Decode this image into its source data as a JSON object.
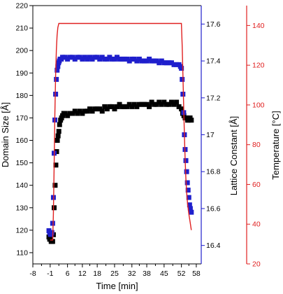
{
  "chart_data": {
    "type": "scatter",
    "x_axis": {
      "label": "Time [min]",
      "range": [
        -8,
        60
      ],
      "ticks": [
        -8,
        -1,
        6,
        12,
        18,
        25,
        32,
        38,
        45,
        52,
        58
      ]
    },
    "y_axes": [
      {
        "id": "domain",
        "label": "Domain Size [Å]",
        "side": "left",
        "color": "#000000",
        "range": [
          105,
          220
        ],
        "ticks": [
          110,
          120,
          130,
          140,
          150,
          160,
          170,
          180,
          190,
          200,
          210,
          220
        ]
      },
      {
        "id": "lattice",
        "label": "Lattice Constant [Å]",
        "side": "right-inner",
        "color": "#1f1fcc",
        "range": [
          16.3,
          17.7
        ],
        "ticks": [
          16.4,
          16.6,
          16.8,
          17.0,
          17.2,
          17.4,
          17.6
        ]
      },
      {
        "id": "temp",
        "label": "Temperature [°C]",
        "side": "right-outer",
        "color": "#e02020",
        "range": [
          20,
          150
        ],
        "ticks": [
          20,
          40,
          60,
          80,
          100,
          120,
          140
        ]
      }
    ],
    "series": [
      {
        "axis": "domain",
        "marker": "square",
        "color": "#000000",
        "x": [
          -1.5,
          -1.2,
          -0.9,
          -0.6,
          -0.3,
          0.0,
          0.3,
          0.6,
          1.0,
          1.3,
          1.6,
          1.9,
          2.2,
          2.5,
          2.8,
          3.2,
          3.6,
          4.0,
          4.5,
          5.0,
          6.0,
          7.0,
          8.0,
          9.0,
          10.0,
          11.0,
          12.0,
          13.0,
          14.0,
          15.0,
          16.0,
          17.0,
          18.0,
          19.0,
          20.0,
          21.0,
          22.0,
          23.0,
          24.0,
          25.0,
          26.0,
          27.0,
          28.0,
          29.0,
          30.0,
          31.0,
          32.0,
          33.0,
          34.0,
          35.0,
          36.0,
          37.0,
          38.0,
          39.0,
          40.0,
          41.0,
          42.0,
          43.0,
          44.0,
          45.0,
          46.0,
          47.0,
          48.0,
          49.0,
          50.0,
          51.0,
          52.0,
          52.5,
          53.0,
          53.5,
          54.0,
          54.5,
          55.0,
          55.5,
          56.0
        ],
        "y": [
          117,
          116,
          116,
          115,
          115,
          115,
          118,
          130,
          140,
          149,
          155,
          160,
          162,
          164,
          167,
          169,
          170,
          171,
          172,
          172,
          171,
          172,
          172,
          173,
          172,
          173,
          172,
          173,
          173,
          174,
          173,
          174,
          174,
          174,
          173,
          175,
          174,
          175,
          175,
          174,
          175,
          176,
          175,
          175,
          175,
          176,
          175,
          176,
          175,
          176,
          176,
          176,
          176,
          175,
          177,
          176,
          176,
          177,
          176,
          177,
          176,
          176,
          177,
          176,
          177,
          175,
          174,
          172,
          171,
          170,
          170,
          169,
          169,
          170,
          169
        ]
      },
      {
        "axis": "lattice",
        "marker": "square",
        "color": "#1f1fcc",
        "x": [
          -1.5,
          -1.2,
          -0.9,
          -0.6,
          -0.3,
          0.0,
          0.3,
          0.6,
          0.9,
          1.2,
          1.5,
          1.8,
          2.1,
          2.4,
          2.7,
          3.0,
          3.5,
          4.0,
          5.0,
          6.0,
          7.0,
          8.0,
          9.0,
          10.0,
          11.0,
          12.0,
          13.0,
          14.0,
          15.0,
          16.0,
          17.0,
          18.0,
          19.0,
          20.0,
          21.0,
          22.0,
          23.0,
          24.0,
          25.0,
          26.0,
          27.0,
          28.0,
          29.0,
          30.0,
          31.0,
          32.0,
          33.0,
          34.0,
          35.0,
          36.0,
          37.0,
          38.0,
          39.0,
          40.0,
          41.0,
          42.0,
          43.0,
          44.0,
          45.0,
          46.0,
          47.0,
          48.0,
          49.0,
          50.0,
          51.0,
          51.6,
          52.0,
          52.3,
          52.6,
          52.9,
          53.2,
          53.5,
          53.8,
          54.1,
          54.4,
          54.7,
          55.0,
          55.3,
          55.6,
          56.0
        ],
        "y": [
          16.48,
          16.47,
          16.46,
          16.46,
          16.47,
          16.52,
          16.66,
          16.9,
          17.08,
          17.22,
          17.3,
          17.35,
          17.37,
          17.39,
          17.4,
          17.41,
          17.41,
          17.42,
          17.42,
          17.41,
          17.42,
          17.42,
          17.41,
          17.42,
          17.42,
          17.41,
          17.42,
          17.41,
          17.42,
          17.41,
          17.42,
          17.42,
          17.41,
          17.42,
          17.41,
          17.41,
          17.42,
          17.41,
          17.41,
          17.42,
          17.41,
          17.41,
          17.41,
          17.41,
          17.4,
          17.41,
          17.41,
          17.4,
          17.41,
          17.4,
          17.4,
          17.4,
          17.41,
          17.4,
          17.4,
          17.4,
          17.39,
          17.4,
          17.39,
          17.39,
          17.39,
          17.39,
          17.38,
          17.38,
          17.38,
          17.37,
          17.36,
          17.3,
          17.22,
          17.12,
          17.0,
          16.92,
          16.86,
          16.8,
          16.74,
          16.7,
          16.66,
          16.62,
          16.6,
          16.58
        ]
      }
    ],
    "lines": [
      {
        "axis": "temp",
        "color": "#e02020",
        "x": [
          -1.0,
          0.0,
          0.3,
          0.6,
          0.9,
          1.2,
          1.5,
          1.8,
          2.1,
          2.5,
          3.0,
          10.0,
          20.0,
          30.0,
          40.0,
          50.0,
          51.5,
          52.0,
          52.3,
          52.6,
          52.9,
          53.2,
          53.5,
          53.8,
          54.1,
          54.5,
          55.0,
          55.5,
          56.0
        ],
        "y": [
          32,
          32,
          45,
          70,
          95,
          115,
          128,
          135,
          139,
          141,
          141,
          141,
          141,
          141,
          141,
          141,
          141,
          141,
          130,
          115,
          100,
          85,
          72,
          63,
          56,
          50,
          45,
          41,
          37
        ]
      }
    ],
    "grid": false,
    "legend": "none",
    "title": ""
  }
}
